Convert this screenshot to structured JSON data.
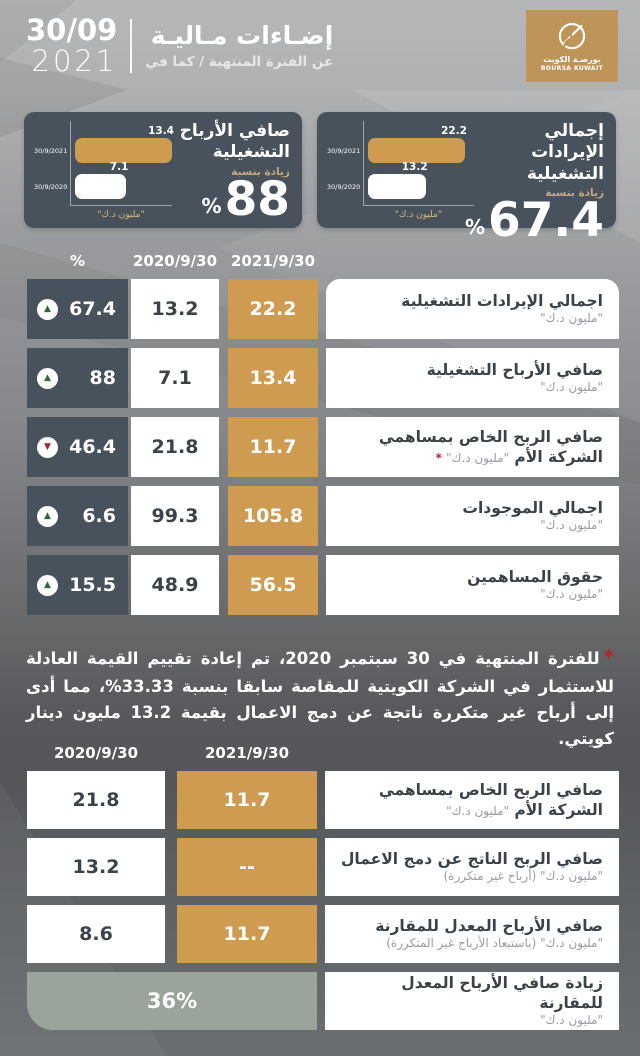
{
  "header": {
    "date_day_month": "30/09",
    "date_year": "2021",
    "title_ar": "إضـاءات مـاليـة",
    "subtitle_ar": "عن الفترة المنتهية / كما في",
    "logo_ar": "بورصـة الكويت",
    "logo_en": "BOURSA KUWAIT"
  },
  "cards": [
    {
      "title": "إجمالي الإيرادات التشغيلية",
      "increase_label": "زيادة بنسبة",
      "value": "67.4",
      "percent_sign": "%",
      "unit": "\"مليون د.ك\"",
      "bars": [
        {
          "label": "30/9/2021",
          "value": "22.2",
          "color": "gold"
        },
        {
          "label": "30/9/2020",
          "value": "13.2",
          "color": "white"
        }
      ]
    },
    {
      "title": "صافي الأرباح التشغيلية",
      "increase_label": "زيادة بنسبة",
      "value": "88",
      "percent_sign": "%",
      "unit": "\"مليون د.ك\"",
      "bars": [
        {
          "label": "30/9/2021",
          "value": "13.4",
          "color": "gold"
        },
        {
          "label": "30/9/2020",
          "value": "7.1",
          "color": "white"
        }
      ]
    }
  ],
  "table1": {
    "headers": {
      "pct": "%",
      "y2020": "2020/9/30",
      "y2021": "2021/9/30"
    },
    "rows": [
      {
        "pct": "67.4",
        "trend": "up",
        "v2020": "13.2",
        "v2021": "22.2",
        "label_lines": [
          "اجمالي الإيرادات التشغيلية"
        ],
        "sub": "\"مليون د.ك\"",
        "sub_inline": false,
        "asterisk": false
      },
      {
        "pct": "88",
        "trend": "up",
        "v2020": "7.1",
        "v2021": "13.4",
        "label_lines": [
          "صافي الأرباح التشغيلية"
        ],
        "sub": "\"مليون د.ك\"",
        "sub_inline": false,
        "asterisk": false
      },
      {
        "pct": "46.4",
        "trend": "down",
        "v2020": "21.8",
        "v2021": "11.7",
        "label_lines": [
          "صافي الربح الخاص بمساهمي",
          "الشركة الأم"
        ],
        "sub": "\"مليون د.ك\"",
        "sub_inline": true,
        "asterisk": true
      },
      {
        "pct": "6.6",
        "trend": "up",
        "v2020": "99.3",
        "v2021": "105.8",
        "label_lines": [
          "اجمالي الموجودات"
        ],
        "sub": "\"مليون د.ك\"",
        "sub_inline": false,
        "asterisk": false
      },
      {
        "pct": "15.5",
        "trend": "up",
        "v2020": "48.9",
        "v2021": "56.5",
        "label_lines": [
          "حقوق المساهمين"
        ],
        "sub": "\"مليون د.ك\"",
        "sub_inline": false,
        "asterisk": false
      }
    ]
  },
  "note": {
    "asterisk": "*",
    "text": "للفترة المنتهية في 30 سبتمبر 2020، تم إعادة تقييم القيمة العادلة للاستثمار في الشركة الكويتية للمقاصة سابقا بنسبة 33.33%، مما أدى إلى أرباح غير متكررة ناتجة عن دمج الاعمال بقيمة 13.2 مليون دينار كويتي."
  },
  "table2": {
    "headers": {
      "y2020": "2020/9/30",
      "y2021": "2021/9/30"
    },
    "rows": [
      {
        "v2020": "21.8",
        "v2021": "11.7",
        "label_lines": [
          "صافي الربح الخاص بمساهمي",
          "الشركة الأم"
        ],
        "sub": "\"مليون د.ك\"",
        "sub_inline": true
      },
      {
        "v2020": "13.2",
        "v2021": "--",
        "label_lines": [
          "صافي الربح الناتج عن دمج الاعمال"
        ],
        "sub": "\"مليون د.ك\" (أرباح غير متكررة)",
        "sub_inline": false
      },
      {
        "v2020": "8.6",
        "v2021": "11.7",
        "label_lines": [
          "صافي الأرباح المعدل للمقارنة"
        ],
        "sub": "\"مليون د.ك\" (باستبعاد الأرباح غير المتكررة)",
        "sub_inline": false
      },
      {
        "span_value": "36%",
        "label_lines": [
          "زيادة صافي الأرباح المعدل للمقارنة"
        ],
        "sub": "\"مليون د.ك\"",
        "sub_inline": false
      }
    ]
  },
  "colors": {
    "gold": "#cf9b51",
    "dark_slate": "#48525c",
    "sage": "#9aa49a",
    "trend_up_green": "#2e6b34",
    "trend_down_red": "#a9242c",
    "note_red": "#b3242c"
  },
  "chart_data": [
    {
      "type": "bar",
      "orientation": "horizontal",
      "title": "إجمالي الإيرادات التشغيلية",
      "subtitle": "زيادة بنسبة 67.4%",
      "categories": [
        "30/9/2021",
        "30/9/2020"
      ],
      "values": [
        22.2,
        13.2
      ],
      "unit": "مليون د.ك",
      "increase_pct": 67.4
    },
    {
      "type": "bar",
      "orientation": "horizontal",
      "title": "صافي الأرباح التشغيلية",
      "subtitle": "زيادة بنسبة 88%",
      "categories": [
        "30/9/2021",
        "30/9/2020"
      ],
      "values": [
        13.4,
        7.1
      ],
      "unit": "مليون د.ك",
      "increase_pct": 88
    },
    {
      "type": "table",
      "columns": [
        "%",
        "2020/9/30",
        "2021/9/30",
        ""
      ],
      "rows": [
        {
          "pct_change": 67.4,
          "trend": "up",
          "y2020": 13.2,
          "y2021": 22.2,
          "metric": "اجمالي الإيرادات التشغيلية",
          "unit": "مليون د.ك"
        },
        {
          "pct_change": 88,
          "trend": "up",
          "y2020": 7.1,
          "y2021": 13.4,
          "metric": "صافي الأرباح التشغيلية",
          "unit": "مليون د.ك"
        },
        {
          "pct_change": 46.4,
          "trend": "down",
          "y2020": 21.8,
          "y2021": 11.7,
          "metric": "صافي الربح الخاص بمساهمي الشركة الأم",
          "unit": "مليون د.ك"
        },
        {
          "pct_change": 6.6,
          "trend": "up",
          "y2020": 99.3,
          "y2021": 105.8,
          "metric": "اجمالي الموجودات",
          "unit": "مليون د.ك"
        },
        {
          "pct_change": 15.5,
          "trend": "up",
          "y2020": 48.9,
          "y2021": 56.5,
          "metric": "حقوق المساهمين",
          "unit": "مليون د.ك"
        }
      ]
    },
    {
      "type": "table",
      "columns": [
        "2020/9/30",
        "2021/9/30",
        ""
      ],
      "rows": [
        {
          "y2020": 21.8,
          "y2021": 11.7,
          "metric": "صافي الربح الخاص بمساهمي الشركة الأم",
          "unit": "مليون د.ك"
        },
        {
          "y2020": 13.2,
          "y2021": null,
          "metric": "صافي الربح الناتج عن دمج الاعمال",
          "unit": "مليون د.ك (أرباح غير متكررة)"
        },
        {
          "y2020": 8.6,
          "y2021": 11.7,
          "metric": "صافي الأرباح المعدل للمقارنة",
          "unit": "مليون د.ك (باستبعاد الأرباح غير المتكررة)"
        },
        {
          "combined_value": "36%",
          "metric": "زيادة صافي الأرباح المعدل للمقارنة",
          "unit": "مليون د.ك"
        }
      ]
    }
  ]
}
